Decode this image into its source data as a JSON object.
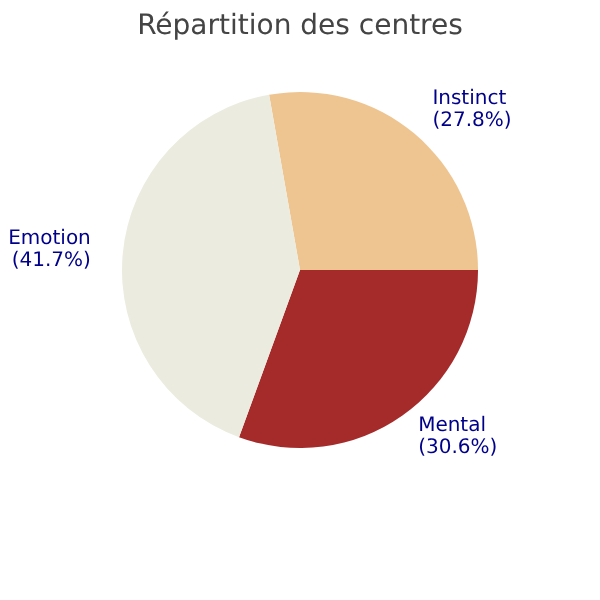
{
  "chart_data": {
    "type": "pie",
    "title": "Répartition des centres",
    "categories": [
      "Instinct",
      "Mental",
      "Emotion"
    ],
    "values": [
      27.8,
      30.6,
      41.7
    ],
    "colors": [
      "#eec591",
      "#a52a2a",
      "#ebebdf"
    ],
    "value_labels": [
      "(27.8%)",
      "(30.6%)",
      "(41.7%)"
    ],
    "legend": false
  }
}
